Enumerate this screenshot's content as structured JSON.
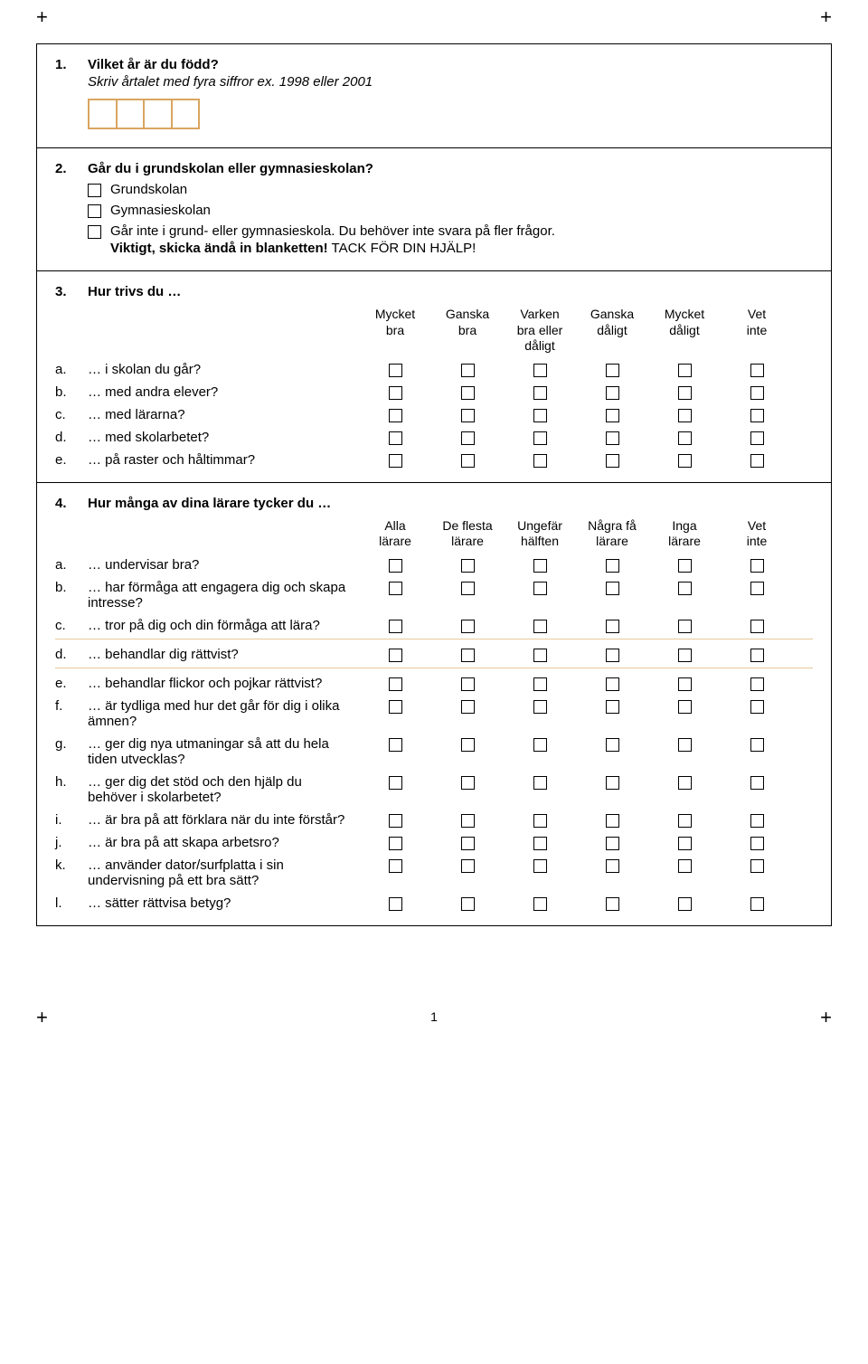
{
  "page_number": "1",
  "q1": {
    "num": "1.",
    "title": "Vilket år är du född?",
    "instr": "Skriv årtalet med fyra siffror ex. 1998 eller 2001"
  },
  "q2": {
    "num": "2.",
    "title": "Går du i grundskolan eller gymnasieskolan?",
    "options": [
      {
        "label": "Grundskolan"
      },
      {
        "label": "Gymnasieskolan"
      },
      {
        "label": "Går inte i grund- eller gymnasieskola. Du behöver inte svara på fler frågor.",
        "sub_bold": "Viktigt, skicka ändå in blanketten!",
        "sub_plain": " TACK FÖR DIN HJÄLP!"
      }
    ]
  },
  "q3": {
    "num": "3.",
    "title": "Hur trivs du …",
    "label_width": 300,
    "columns": [
      "Mycket\nbra",
      "Ganska\nbra",
      "Varken\nbra eller\ndåligt",
      "Ganska\ndåligt",
      "Mycket\ndåligt",
      "Vet\ninte"
    ],
    "rows": [
      {
        "letter": "a.",
        "label": "… i skolan du går?"
      },
      {
        "letter": "b.",
        "label": "… med andra elever?"
      },
      {
        "letter": "c.",
        "label": "… med lärarna?"
      },
      {
        "letter": "d.",
        "label": "… med skolarbetet?"
      },
      {
        "letter": "e.",
        "label": "… på raster och håltimmar?"
      }
    ]
  },
  "q4": {
    "num": "4.",
    "title": "Hur många av dina lärare tycker du …",
    "label_width": 300,
    "columns": [
      "Alla\nlärare",
      "De flesta\nlärare",
      "Ungefär\nhälften",
      "Några få\nlärare",
      "Inga\nlärare",
      "Vet\ninte"
    ],
    "separators_after": [
      2,
      3
    ],
    "rows": [
      {
        "letter": "a.",
        "label": "… undervisar bra?"
      },
      {
        "letter": "b.",
        "label": "… har förmåga att engagera dig och skapa intresse?"
      },
      {
        "letter": "c.",
        "label": "… tror på dig och din förmåga att lära?"
      },
      {
        "letter": "d.",
        "label": "… behandlar dig rättvist?"
      },
      {
        "letter": "e.",
        "label": "… behandlar flickor och pojkar rättvist?"
      },
      {
        "letter": "f.",
        "label": "… är tydliga med hur det går för dig i olika ämnen?"
      },
      {
        "letter": "g.",
        "label": "… ger dig nya utmaningar så att du hela tiden utvecklas?"
      },
      {
        "letter": "h.",
        "label": "… ger dig det stöd och den hjälp du behöver i skolarbetet?"
      },
      {
        "letter": "i.",
        "label": "… är bra på att förklara när du inte förstår?"
      },
      {
        "letter": "j.",
        "label": "… är bra på att skapa arbetsro?"
      },
      {
        "letter": "k.",
        "label": "… använder dator/surfplatta i sin undervisning på ett bra sätt?"
      },
      {
        "letter": "l.",
        "label": "… sätter rättvisa betyg?"
      }
    ]
  }
}
